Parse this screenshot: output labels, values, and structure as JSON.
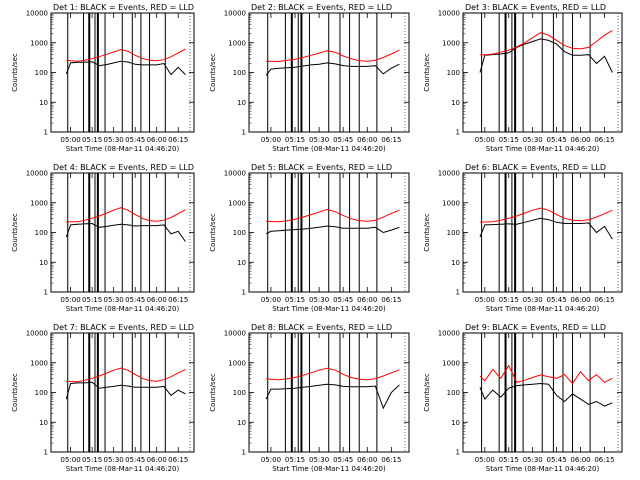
{
  "figure": {
    "background": "#ffffff",
    "events_color": "#000000",
    "lld_color": "#ff0000"
  },
  "chart_data": [
    {
      "type": "line",
      "title": "Det 1: BLACK = Events, RED = LLD",
      "ylabel": "Counts/sec",
      "xlabel": "Start Time (08-Mar-11 04:46:20)",
      "x_ticks": [
        "05:00",
        "05:15",
        "05:30",
        "05:45",
        "06:00",
        "06:15"
      ],
      "y_ticks": [
        "1",
        "10",
        "100",
        "1000",
        "10000"
      ],
      "yscale": "log",
      "ylim": [
        1,
        10000
      ],
      "series": [
        {
          "name": "Events",
          "color": "#000000",
          "x": [
            "04:57",
            "05:00",
            "05:05",
            "05:10",
            "05:15",
            "05:20",
            "05:25",
            "05:30",
            "05:35",
            "05:40",
            "05:45",
            "05:50",
            "05:55",
            "06:00",
            "06:05",
            "06:10",
            "06:15",
            "06:20"
          ],
          "values": [
            90,
            210,
            220,
            220,
            230,
            170,
            185,
            210,
            240,
            225,
            190,
            180,
            180,
            180,
            200,
            85,
            150,
            85
          ]
        },
        {
          "name": "LLD",
          "color": "#ff0000",
          "x": [
            "04:57",
            "05:00",
            "05:05",
            "05:10",
            "05:15",
            "05:20",
            "05:25",
            "05:30",
            "05:35",
            "05:40",
            "05:45",
            "05:50",
            "05:55",
            "06:00",
            "06:05",
            "06:10",
            "06:15",
            "06:20"
          ],
          "values": [
            260,
            250,
            240,
            260,
            290,
            340,
            410,
            490,
            590,
            520,
            380,
            300,
            260,
            250,
            270,
            340,
            450,
            620
          ]
        }
      ]
    },
    {
      "type": "line",
      "title": "Det 2: BLACK = Events, RED = LLD",
      "ylabel": "Counts/sec",
      "xlabel": "Start Time (08-Mar-11 04:46:20)",
      "x_ticks": [
        "05:00",
        "05:15",
        "05:30",
        "05:45",
        "06:00",
        "06:15"
      ],
      "y_ticks": [
        "1",
        "10",
        "100",
        "1000",
        "10000"
      ],
      "yscale": "log",
      "ylim": [
        1,
        10000
      ],
      "series": [
        {
          "name": "Events",
          "color": "#000000",
          "x": [
            "04:57",
            "05:00",
            "05:05",
            "05:10",
            "05:15",
            "05:20",
            "05:25",
            "05:30",
            "05:35",
            "05:40",
            "05:45",
            "05:50",
            "05:55",
            "06:00",
            "06:05",
            "06:10",
            "06:15",
            "06:20"
          ],
          "values": [
            80,
            130,
            140,
            145,
            150,
            165,
            180,
            190,
            210,
            195,
            170,
            160,
            160,
            160,
            170,
            90,
            140,
            190
          ]
        },
        {
          "name": "LLD",
          "color": "#ff0000",
          "x": [
            "04:57",
            "05:00",
            "05:05",
            "05:10",
            "05:15",
            "05:20",
            "05:25",
            "05:30",
            "05:35",
            "05:40",
            "05:45",
            "05:50",
            "05:55",
            "06:00",
            "06:05",
            "06:10",
            "06:15",
            "06:20"
          ],
          "values": [
            240,
            240,
            235,
            260,
            280,
            320,
            380,
            450,
            540,
            480,
            360,
            290,
            250,
            240,
            260,
            320,
            420,
            560
          ]
        }
      ]
    },
    {
      "type": "line",
      "title": "Det 3: BLACK = Events, RED = LLD",
      "ylabel": "Counts/sec",
      "xlabel": "Start Time (08-Mar-11 04:46:20)",
      "x_ticks": [
        "05:00",
        "05:15",
        "05:30",
        "05:45",
        "06:00",
        "06:15"
      ],
      "y_ticks": [
        "1",
        "10",
        "100",
        "1000",
        "10000"
      ],
      "yscale": "log",
      "ylim": [
        1,
        10000
      ],
      "series": [
        {
          "name": "Events",
          "color": "#000000",
          "x": [
            "04:57",
            "05:00",
            "05:05",
            "05:10",
            "05:15",
            "05:20",
            "05:25",
            "05:30",
            "05:35",
            "05:40",
            "05:45",
            "05:50",
            "05:55",
            "06:00",
            "06:05",
            "06:10",
            "06:15",
            "06:20"
          ],
          "values": [
            100,
            380,
            400,
            420,
            460,
            700,
            900,
            1100,
            1350,
            1200,
            900,
            500,
            380,
            380,
            400,
            200,
            350,
            100
          ]
        },
        {
          "name": "LLD",
          "color": "#ff0000",
          "x": [
            "04:57",
            "05:00",
            "05:05",
            "05:10",
            "05:15",
            "05:20",
            "05:25",
            "05:30",
            "05:35",
            "05:40",
            "05:45",
            "05:50",
            "05:55",
            "06:00",
            "06:05",
            "06:10",
            "06:15",
            "06:20"
          ],
          "values": [
            400,
            390,
            420,
            480,
            560,
            720,
            1000,
            1500,
            2200,
            1800,
            1200,
            800,
            650,
            620,
            700,
            1100,
            1800,
            2600
          ]
        }
      ]
    },
    {
      "type": "line",
      "title": "Det 4: BLACK = Events, RED = LLD",
      "ylabel": "Counts/sec",
      "xlabel": "Start Time (08-Mar-11 04:46:20)",
      "x_ticks": [
        "05:00",
        "05:15",
        "05:30",
        "05:45",
        "06:00",
        "06:15"
      ],
      "y_ticks": [
        "1",
        "10",
        "100",
        "1000",
        "10000"
      ],
      "yscale": "log",
      "ylim": [
        1,
        10000
      ],
      "series": [
        {
          "name": "Events",
          "color": "#000000",
          "x": [
            "04:57",
            "05:00",
            "05:05",
            "05:10",
            "05:15",
            "05:20",
            "05:25",
            "05:30",
            "05:35",
            "05:40",
            "05:45",
            "05:50",
            "05:55",
            "06:00",
            "06:05",
            "06:10",
            "06:15",
            "06:20"
          ],
          "values": [
            70,
            180,
            190,
            195,
            200,
            150,
            160,
            175,
            190,
            180,
            165,
            170,
            170,
            170,
            180,
            90,
            110,
            50
          ]
        },
        {
          "name": "LLD",
          "color": "#ff0000",
          "x": [
            "04:57",
            "05:00",
            "05:05",
            "05:10",
            "05:15",
            "05:20",
            "05:25",
            "05:30",
            "05:35",
            "05:40",
            "05:45",
            "05:50",
            "05:55",
            "06:00",
            "06:05",
            "06:10",
            "06:15",
            "06:20"
          ],
          "values": [
            220,
            230,
            230,
            260,
            300,
            360,
            450,
            560,
            680,
            560,
            400,
            300,
            250,
            240,
            260,
            320,
            430,
            580
          ]
        }
      ]
    },
    {
      "type": "line",
      "title": "Det 5: BLACK = Events, RED = LLD",
      "ylabel": "Counts/sec",
      "xlabel": "Start Time (08-Mar-11 04:46:20)",
      "x_ticks": [
        "05:00",
        "05:15",
        "05:30",
        "05:45",
        "06:00",
        "06:15"
      ],
      "y_ticks": [
        "1",
        "10",
        "100",
        "1000",
        "10000"
      ],
      "yscale": "log",
      "ylim": [
        1,
        10000
      ],
      "series": [
        {
          "name": "Events",
          "color": "#000000",
          "x": [
            "04:57",
            "05:00",
            "05:05",
            "05:10",
            "05:15",
            "05:20",
            "05:25",
            "05:30",
            "05:35",
            "05:40",
            "05:45",
            "05:50",
            "05:55",
            "06:00",
            "06:05",
            "06:10",
            "06:15",
            "06:20"
          ],
          "values": [
            90,
            110,
            115,
            120,
            125,
            130,
            140,
            150,
            165,
            155,
            140,
            140,
            140,
            140,
            150,
            100,
            120,
            150
          ]
        },
        {
          "name": "LLD",
          "color": "#ff0000",
          "x": [
            "04:57",
            "05:00",
            "05:05",
            "05:10",
            "05:15",
            "05:20",
            "05:25",
            "05:30",
            "05:35",
            "05:40",
            "05:45",
            "05:50",
            "05:55",
            "06:00",
            "06:05",
            "06:10",
            "06:15",
            "06:20"
          ],
          "values": [
            240,
            235,
            230,
            250,
            280,
            330,
            400,
            480,
            600,
            500,
            370,
            290,
            250,
            240,
            260,
            330,
            440,
            560
          ]
        }
      ]
    },
    {
      "type": "line",
      "title": "Det 6: BLACK = Events, RED = LLD",
      "ylabel": "Counts/sec",
      "xlabel": "Start Time (08-Mar-11 04:46:20)",
      "x_ticks": [
        "05:00",
        "05:15",
        "05:30",
        "05:45",
        "06:00",
        "06:15"
      ],
      "y_ticks": [
        "1",
        "10",
        "100",
        "1000",
        "10000"
      ],
      "yscale": "log",
      "ylim": [
        1,
        10000
      ],
      "series": [
        {
          "name": "Events",
          "color": "#000000",
          "x": [
            "04:57",
            "05:00",
            "05:05",
            "05:10",
            "05:15",
            "05:20",
            "05:25",
            "05:30",
            "05:35",
            "05:40",
            "05:45",
            "05:50",
            "05:55",
            "06:00",
            "06:05",
            "06:10",
            "06:15",
            "06:20"
          ],
          "values": [
            70,
            180,
            185,
            190,
            195,
            190,
            220,
            260,
            300,
            270,
            220,
            200,
            200,
            200,
            210,
            100,
            160,
            60
          ]
        },
        {
          "name": "LLD",
          "color": "#ff0000",
          "x": [
            "04:57",
            "05:00",
            "05:05",
            "05:10",
            "05:15",
            "05:20",
            "05:25",
            "05:30",
            "05:35",
            "05:40",
            "05:45",
            "05:50",
            "05:55",
            "06:00",
            "06:05",
            "06:10",
            "06:15",
            "06:20"
          ],
          "values": [
            220,
            225,
            230,
            260,
            300,
            360,
            450,
            560,
            660,
            560,
            400,
            300,
            260,
            250,
            270,
            330,
            430,
            560
          ]
        }
      ]
    },
    {
      "type": "line",
      "title": "Det 7: BLACK = Events, RED = LLD",
      "ylabel": "Counts/sec",
      "xlabel": "Start Time (08-Mar-11 04:46:20)",
      "x_ticks": [
        "05:00",
        "05:15",
        "05:30",
        "05:45",
        "06:00",
        "06:15"
      ],
      "y_ticks": [
        "1",
        "10",
        "100",
        "1000",
        "10000"
      ],
      "yscale": "log",
      "ylim": [
        1,
        10000
      ],
      "series": [
        {
          "name": "Events",
          "color": "#000000",
          "x": [
            "04:57",
            "05:00",
            "05:05",
            "05:10",
            "05:15",
            "05:20",
            "05:25",
            "05:30",
            "05:35",
            "05:40",
            "05:45",
            "05:50",
            "05:55",
            "06:00",
            "06:05",
            "06:10",
            "06:15",
            "06:20"
          ],
          "values": [
            60,
            200,
            210,
            210,
            220,
            140,
            150,
            160,
            175,
            165,
            150,
            150,
            150,
            150,
            160,
            80,
            120,
            90
          ]
        },
        {
          "name": "LLD",
          "color": "#ff0000",
          "x": [
            "04:57",
            "05:00",
            "05:05",
            "05:10",
            "05:15",
            "05:20",
            "05:25",
            "05:30",
            "05:35",
            "05:40",
            "05:45",
            "05:50",
            "05:55",
            "06:00",
            "06:05",
            "06:10",
            "06:15",
            "06:20"
          ],
          "values": [
            240,
            235,
            230,
            260,
            300,
            360,
            450,
            560,
            660,
            560,
            400,
            300,
            250,
            240,
            270,
            340,
            450,
            600
          ]
        }
      ]
    },
    {
      "type": "line",
      "title": "Det 8: BLACK = Events, RED = LLD",
      "ylabel": "Counts/sec",
      "xlabel": "Start Time (08-Mar-11 04:46:20)",
      "x_ticks": [
        "05:00",
        "05:15",
        "05:30",
        "05:45",
        "06:00",
        "06:15"
      ],
      "y_ticks": [
        "1",
        "10",
        "100",
        "1000",
        "10000"
      ],
      "yscale": "log",
      "ylim": [
        1,
        10000
      ],
      "series": [
        {
          "name": "Events",
          "color": "#000000",
          "x": [
            "04:57",
            "05:00",
            "05:05",
            "05:10",
            "05:15",
            "05:20",
            "05:25",
            "05:30",
            "05:35",
            "05:40",
            "05:45",
            "05:50",
            "05:55",
            "06:00",
            "06:05",
            "06:10",
            "06:15",
            "06:20"
          ],
          "values": [
            60,
            130,
            130,
            135,
            140,
            150,
            160,
            175,
            190,
            180,
            160,
            155,
            155,
            155,
            165,
            30,
            100,
            180
          ]
        },
        {
          "name": "LLD",
          "color": "#ff0000",
          "x": [
            "04:57",
            "05:00",
            "05:05",
            "05:10",
            "05:15",
            "05:20",
            "05:25",
            "05:30",
            "05:35",
            "05:40",
            "05:45",
            "05:50",
            "05:55",
            "06:00",
            "06:05",
            "06:10",
            "06:15",
            "06:20"
          ],
          "values": [
            290,
            280,
            270,
            290,
            320,
            380,
            460,
            560,
            650,
            560,
            410,
            320,
            280,
            270,
            290,
            360,
            460,
            580
          ]
        }
      ]
    },
    {
      "type": "line",
      "title": "Det 9: BLACK = Events, RED = LLD",
      "ylabel": "Counts/sec",
      "xlabel": "Start Time (08-Mar-11 04:46:20)",
      "x_ticks": [
        "05:00",
        "05:15",
        "05:30",
        "05:45",
        "06:00",
        "06:15"
      ],
      "y_ticks": [
        "1",
        "10",
        "100",
        "1000",
        "10000"
      ],
      "yscale": "log",
      "ylim": [
        1,
        10000
      ],
      "series": [
        {
          "name": "Events",
          "color": "#000000",
          "x": [
            "04:57",
            "05:00",
            "05:05",
            "05:10",
            "05:15",
            "05:20",
            "05:25",
            "05:30",
            "05:35",
            "05:40",
            "05:45",
            "05:50",
            "05:55",
            "06:00",
            "06:05",
            "06:10",
            "06:15",
            "06:20"
          ],
          "values": [
            150,
            60,
            120,
            70,
            140,
            170,
            180,
            190,
            200,
            190,
            80,
            50,
            90,
            60,
            40,
            50,
            35,
            45
          ]
        },
        {
          "name": "LLD",
          "color": "#ff0000",
          "x": [
            "04:57",
            "05:00",
            "05:05",
            "05:10",
            "05:15",
            "05:20",
            "05:25",
            "05:30",
            "05:35",
            "05:40",
            "05:45",
            "05:50",
            "05:55",
            "06:00",
            "06:05",
            "06:10",
            "06:15",
            "06:20"
          ],
          "values": [
            350,
            250,
            600,
            300,
            800,
            220,
            260,
            320,
            390,
            340,
            300,
            400,
            200,
            500,
            250,
            400,
            220,
            300
          ]
        }
      ]
    }
  ]
}
